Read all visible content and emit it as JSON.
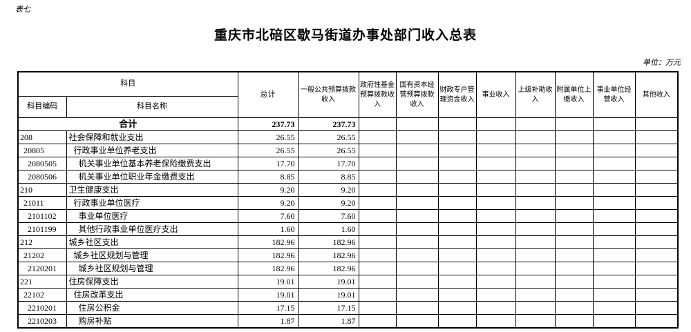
{
  "page": {
    "table_label": "表七",
    "title": "重庆市北碚区歇马街道办事处部门收入总表",
    "unit_note": "单位：万元"
  },
  "colors": {
    "text": "#000000",
    "border": "#000000",
    "background": "#ffffff"
  },
  "table": {
    "header": {
      "subject": "科目",
      "subject_code": "科目编码",
      "subject_name": "科目名称",
      "columns": [
        "总计",
        "一般公共预算拨款收入",
        "政府性基金预算拨款收入",
        "国有资本经营预算拨款收入",
        "财政专户管理资金收入",
        "事业收入",
        "上级补助收入",
        "附属单位上缴收入",
        "事业单位经营收入",
        "其他收入"
      ]
    },
    "total_row": {
      "label": "合计",
      "values": [
        "237.73",
        "237.73",
        "",
        "",
        "",
        "",
        "",
        "",
        "",
        ""
      ]
    },
    "rows": [
      {
        "code": "208",
        "name": "社会保障和就业支出",
        "level": 1,
        "values": [
          "26.55",
          "26.55"
        ]
      },
      {
        "code": "20805",
        "name": "行政事业单位养老支出",
        "level": 2,
        "values": [
          "26.55",
          "26.55"
        ]
      },
      {
        "code": "2080505",
        "name": "机关事业单位基本养老保险缴费支出",
        "level": 3,
        "values": [
          "17.70",
          "17.70"
        ]
      },
      {
        "code": "2080506",
        "name": "机关事业单位职业年金缴费支出",
        "level": 3,
        "values": [
          "8.85",
          "8.85"
        ]
      },
      {
        "code": "210",
        "name": "卫生健康支出",
        "level": 1,
        "values": [
          "9.20",
          "9.20"
        ]
      },
      {
        "code": "21011",
        "name": "行政事业单位医疗",
        "level": 2,
        "values": [
          "9.20",
          "9.20"
        ]
      },
      {
        "code": "2101102",
        "name": "事业单位医疗",
        "level": 3,
        "values": [
          "7.60",
          "7.60"
        ]
      },
      {
        "code": "2101199",
        "name": "其他行政事业单位医疗支出",
        "level": 3,
        "values": [
          "1.60",
          "1.60"
        ]
      },
      {
        "code": "212",
        "name": "城乡社区支出",
        "level": 1,
        "values": [
          "182.96",
          "182.96"
        ]
      },
      {
        "code": "21202",
        "name": "城乡社区规划与管理",
        "level": 2,
        "values": [
          "182.96",
          "182.96"
        ]
      },
      {
        "code": "2120201",
        "name": "城乡社区规划与管理",
        "level": 3,
        "values": [
          "182.96",
          "182.96"
        ]
      },
      {
        "code": "221",
        "name": "住房保障支出",
        "level": 1,
        "values": [
          "19.01",
          "19.01"
        ]
      },
      {
        "code": "22102",
        "name": "住房改革支出",
        "level": 2,
        "values": [
          "19.01",
          "19.01"
        ]
      },
      {
        "code": "2210201",
        "name": "住房公积金",
        "level": 3,
        "values": [
          "17.15",
          "17.15"
        ]
      },
      {
        "code": "2210203",
        "name": "购房补贴",
        "level": 3,
        "values": [
          "1.87",
          "1.87"
        ]
      }
    ]
  }
}
